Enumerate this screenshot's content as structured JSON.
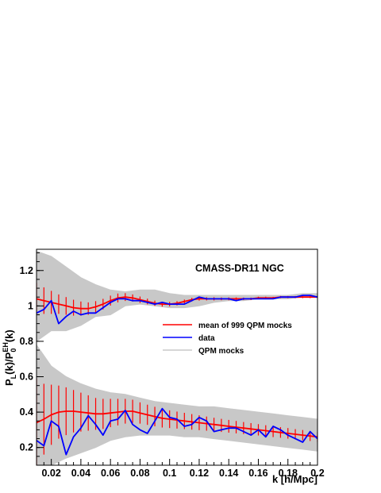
{
  "chart_data": {
    "type": "line",
    "annotation": "CMASS-DR11 NGC",
    "xlabel": "k [h/Mpc]",
    "ylabel": "P_L(k)/P_0^EH(k)",
    "ylabel_parts": {
      "p": "P",
      "sub_l": "L",
      "mid": "(k)/P",
      "sub_0": "0",
      "sup": "EH",
      "end": "(k)"
    },
    "xlim": [
      0.01,
      0.2
    ],
    "ylim": [
      0.1,
      1.32
    ],
    "x_ticks": [
      0.02,
      0.04,
      0.06,
      0.08,
      0.1,
      0.12,
      0.14,
      0.16,
      0.18,
      0.2
    ],
    "x_tick_labels": [
      "0.02",
      "0.04",
      "0.06",
      "0.08",
      "0.1",
      "0.12",
      "0.14",
      "0.16",
      "0.18",
      "0.2"
    ],
    "y_ticks": [
      0.2,
      0.4,
      0.6,
      0.8,
      1.0,
      1.2
    ],
    "y_tick_labels": [
      "0.2",
      "0.4",
      "0.6",
      "0.8",
      "1",
      "1.2"
    ],
    "grid": false,
    "legend_position": "center-right",
    "legend": [
      {
        "label": "mean of 999 QPM mocks",
        "color": "#ff0000"
      },
      {
        "label": "data",
        "color": "#0000ff"
      },
      {
        "label": "QPM mocks",
        "color": "#c8c8c8"
      }
    ],
    "mock_band": {
      "color": "#c8c8c8",
      "monopole_upper": [
        1.31,
        1.28,
        1.22,
        1.16,
        1.12,
        1.09,
        1.08,
        1.09,
        1.09,
        1.07,
        1.06,
        1.06,
        1.06,
        1.06,
        1.06,
        1.06,
        1.06,
        1.06,
        1.07,
        1.07
      ],
      "monopole_lower": [
        0.8,
        0.86,
        0.86,
        0.89,
        0.94,
        0.95,
        1.0,
        1.01,
        1.0,
        0.99,
        0.99,
        1.0,
        1.02,
        1.03,
        1.03,
        1.04,
        1.04,
        1.04,
        1.05,
        1.05
      ],
      "quadrupole_upper": [
        0.78,
        0.66,
        0.6,
        0.56,
        0.53,
        0.51,
        0.5,
        0.48,
        0.46,
        0.45,
        0.44,
        0.43,
        0.43,
        0.42,
        0.41,
        0.4,
        0.39,
        0.38,
        0.37,
        0.36
      ],
      "quadrupole_lower": [
        0.1,
        0.1,
        0.14,
        0.17,
        0.2,
        0.24,
        0.26,
        0.27,
        0.27,
        0.27,
        0.26,
        0.26,
        0.25,
        0.24,
        0.23,
        0.22,
        0.21,
        0.2,
        0.19,
        0.18
      ]
    },
    "series": [
      {
        "name": "mean of 999 QPM mocks",
        "color": "#ff0000",
        "x": [
          0.01,
          0.015,
          0.02,
          0.025,
          0.03,
          0.035,
          0.04,
          0.045,
          0.05,
          0.055,
          0.06,
          0.065,
          0.07,
          0.075,
          0.08,
          0.085,
          0.09,
          0.095,
          0.1,
          0.105,
          0.11,
          0.115,
          0.12,
          0.125,
          0.13,
          0.135,
          0.14,
          0.145,
          0.15,
          0.155,
          0.16,
          0.165,
          0.17,
          0.175,
          0.18,
          0.185,
          0.19,
          0.195,
          0.2
        ],
        "y": [
          1.04,
          1.03,
          1.02,
          1.01,
          1.0,
          0.99,
          0.985,
          0.985,
          0.995,
          1.01,
          1.03,
          1.045,
          1.05,
          1.045,
          1.035,
          1.025,
          1.015,
          1.01,
          1.01,
          1.015,
          1.025,
          1.035,
          1.04,
          1.04,
          1.04,
          1.04,
          1.04,
          1.04,
          1.04,
          1.04,
          1.045,
          1.045,
          1.045,
          1.05,
          1.05,
          1.05,
          1.05,
          1.05,
          1.05
        ],
        "yerr": [
          0.09,
          0.075,
          0.065,
          0.055,
          0.05,
          0.045,
          0.04,
          0.035,
          0.032,
          0.03,
          0.028,
          0.025,
          0.022,
          0.02,
          0.018,
          0.016,
          0.015,
          0.014,
          0.013,
          0.012,
          0.011,
          0.01,
          0.01,
          0.009,
          0.009,
          0.008,
          0.008,
          0.008,
          0.007,
          0.007,
          0.007,
          0.007,
          0.006,
          0.006,
          0.006,
          0.006,
          0.006,
          0.006,
          0.006
        ]
      },
      {
        "name": "data",
        "color": "#0000ff",
        "x": [
          0.01,
          0.015,
          0.02,
          0.025,
          0.03,
          0.035,
          0.04,
          0.045,
          0.05,
          0.055,
          0.06,
          0.065,
          0.07,
          0.075,
          0.08,
          0.085,
          0.09,
          0.095,
          0.1,
          0.105,
          0.11,
          0.115,
          0.12,
          0.125,
          0.13,
          0.135,
          0.14,
          0.145,
          0.15,
          0.155,
          0.16,
          0.165,
          0.17,
          0.175,
          0.18,
          0.185,
          0.19,
          0.195,
          0.2
        ],
        "y": [
          0.96,
          0.98,
          1.03,
          0.9,
          0.94,
          0.97,
          0.95,
          0.96,
          0.96,
          0.99,
          1.02,
          1.04,
          1.04,
          1.03,
          1.03,
          1.02,
          1.01,
          1.02,
          1.01,
          1.01,
          1.01,
          1.03,
          1.05,
          1.04,
          1.04,
          1.04,
          1.04,
          1.03,
          1.04,
          1.04,
          1.04,
          1.04,
          1.04,
          1.05,
          1.05,
          1.05,
          1.06,
          1.06,
          1.05
        ]
      },
      {
        "name": "mean of 999 QPM mocks",
        "color": "#ff0000",
        "x": [
          0.01,
          0.015,
          0.02,
          0.025,
          0.03,
          0.035,
          0.04,
          0.045,
          0.05,
          0.055,
          0.06,
          0.065,
          0.07,
          0.075,
          0.08,
          0.085,
          0.09,
          0.095,
          0.1,
          0.105,
          0.11,
          0.115,
          0.12,
          0.125,
          0.13,
          0.135,
          0.14,
          0.145,
          0.15,
          0.155,
          0.16,
          0.165,
          0.17,
          0.175,
          0.18,
          0.185,
          0.19,
          0.195,
          0.2
        ],
        "y": [
          0.34,
          0.36,
          0.385,
          0.4,
          0.405,
          0.405,
          0.4,
          0.395,
          0.39,
          0.39,
          0.395,
          0.4,
          0.405,
          0.405,
          0.395,
          0.385,
          0.375,
          0.365,
          0.36,
          0.355,
          0.35,
          0.345,
          0.34,
          0.335,
          0.33,
          0.325,
          0.32,
          0.315,
          0.31,
          0.305,
          0.3,
          0.295,
          0.29,
          0.285,
          0.28,
          0.275,
          0.27,
          0.265,
          0.26
        ],
        "yerr": [
          0.25,
          0.2,
          0.17,
          0.15,
          0.135,
          0.12,
          0.11,
          0.1,
          0.09,
          0.085,
          0.08,
          0.075,
          0.07,
          0.065,
          0.06,
          0.057,
          0.055,
          0.052,
          0.05,
          0.048,
          0.046,
          0.044,
          0.042,
          0.04,
          0.038,
          0.037,
          0.036,
          0.035,
          0.034,
          0.033,
          0.032,
          0.031,
          0.031,
          0.03,
          0.03,
          0.029,
          0.029,
          0.028,
          0.028
        ]
      },
      {
        "name": "data",
        "color": "#0000ff",
        "x": [
          0.01,
          0.015,
          0.02,
          0.025,
          0.03,
          0.035,
          0.04,
          0.045,
          0.05,
          0.055,
          0.06,
          0.065,
          0.07,
          0.075,
          0.08,
          0.085,
          0.09,
          0.095,
          0.1,
          0.105,
          0.11,
          0.115,
          0.12,
          0.125,
          0.13,
          0.135,
          0.14,
          0.145,
          0.15,
          0.155,
          0.16,
          0.165,
          0.17,
          0.175,
          0.18,
          0.185,
          0.19,
          0.195,
          0.2
        ],
        "y": [
          0.24,
          0.21,
          0.35,
          0.32,
          0.16,
          0.26,
          0.31,
          0.38,
          0.33,
          0.27,
          0.35,
          0.36,
          0.41,
          0.33,
          0.3,
          0.28,
          0.35,
          0.42,
          0.37,
          0.36,
          0.32,
          0.33,
          0.37,
          0.35,
          0.29,
          0.3,
          0.31,
          0.31,
          0.29,
          0.27,
          0.3,
          0.26,
          0.32,
          0.3,
          0.27,
          0.25,
          0.23,
          0.29,
          0.25
        ]
      }
    ]
  }
}
